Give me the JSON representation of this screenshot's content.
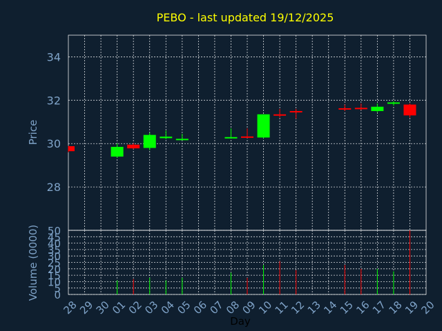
{
  "chart_data": {
    "type": "candlestick",
    "title": "PEBO - last updated 19/12/2025",
    "xlabel": "Day",
    "price_ylabel": "Price",
    "volume_ylabel": "Volume (0000)",
    "price_ylim": [
      26.0,
      35.0
    ],
    "price_ticks": [
      28,
      30,
      32,
      34
    ],
    "volume_ylim": [
      0,
      50
    ],
    "volume_ticks": [
      0,
      5,
      10,
      15,
      20,
      25,
      30,
      35,
      40,
      45,
      50
    ],
    "grid": true,
    "colors": {
      "up": "#00ff00",
      "down": "#ff0000",
      "background": "#0f1f2f",
      "title": "#ffff00",
      "label": "#7fa3c8"
    },
    "x_ticks": [
      "28",
      "29",
      "30",
      "01",
      "02",
      "03",
      "04",
      "05",
      "06",
      "07",
      "08",
      "09",
      "10",
      "11",
      "12",
      "13",
      "14",
      "15",
      "16",
      "17",
      "18",
      "19",
      "20"
    ],
    "candles": [
      {
        "day": "28",
        "open": 29.88,
        "high": 29.9,
        "low": 29.6,
        "close": 29.65,
        "volume": 0
      },
      {
        "day": "01",
        "open": 29.4,
        "high": 30.0,
        "low": 29.35,
        "close": 29.85,
        "volume": 11
      },
      {
        "day": "02",
        "open": 29.95,
        "high": 30.02,
        "low": 29.75,
        "close": 29.78,
        "volume": 12
      },
      {
        "day": "03",
        "open": 29.8,
        "high": 30.5,
        "low": 29.7,
        "close": 30.4,
        "volume": 13
      },
      {
        "day": "04",
        "open": 30.25,
        "high": 30.6,
        "low": 30.2,
        "close": 30.32,
        "volume": 11
      },
      {
        "day": "05",
        "open": 30.2,
        "high": 30.45,
        "low": 30.15,
        "close": 30.22,
        "volume": 13
      },
      {
        "day": "08",
        "open": 30.28,
        "high": 30.7,
        "low": 30.25,
        "close": 30.3,
        "volume": 17
      },
      {
        "day": "09",
        "open": 30.33,
        "high": 30.7,
        "low": 30.25,
        "close": 30.28,
        "volume": 13
      },
      {
        "day": "10",
        "open": 30.28,
        "high": 31.35,
        "low": 30.25,
        "close": 31.35,
        "volume": 23
      },
      {
        "day": "11",
        "open": 31.35,
        "high": 31.6,
        "low": 31.2,
        "close": 31.3,
        "volume": 26
      },
      {
        "day": "12",
        "open": 31.5,
        "high": 31.6,
        "low": 31.15,
        "close": 31.45,
        "volume": 19
      },
      {
        "day": "15",
        "open": 31.63,
        "high": 31.8,
        "low": 31.5,
        "close": 31.57,
        "volume": 23
      },
      {
        "day": "16",
        "open": 31.65,
        "high": 31.85,
        "low": 31.55,
        "close": 31.6,
        "volume": 20
      },
      {
        "day": "17",
        "open": 31.5,
        "high": 31.85,
        "low": 31.45,
        "close": 31.7,
        "volume": 20
      },
      {
        "day": "18",
        "open": 31.85,
        "high": 31.95,
        "low": 31.75,
        "close": 31.9,
        "volume": 18
      },
      {
        "day": "19",
        "open": 31.8,
        "high": 31.85,
        "low": 31.2,
        "close": 31.3,
        "volume": 50
      }
    ]
  }
}
